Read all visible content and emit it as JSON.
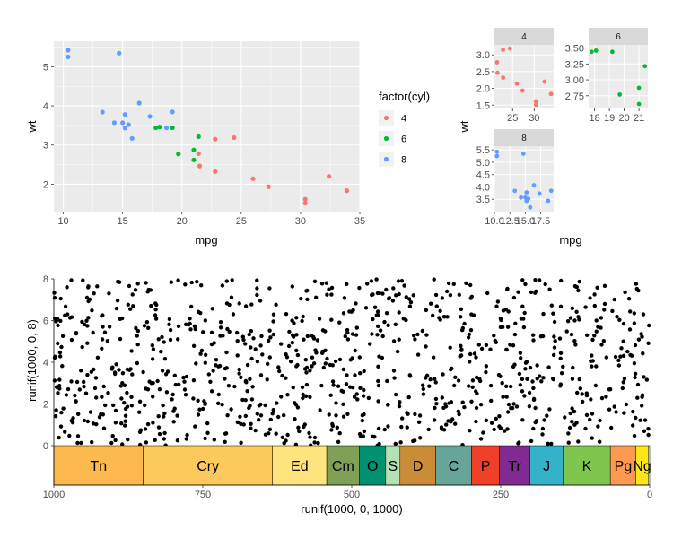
{
  "chart_data": [
    {
      "id": "main",
      "type": "scatter",
      "title": "",
      "xlabel": "mpg",
      "ylabel": "wt",
      "xlim": [
        9.2,
        35
      ],
      "ylim": [
        1.3,
        5.65
      ],
      "xticks": [
        10,
        15,
        20,
        25,
        30,
        35
      ],
      "yticks": [
        2,
        3,
        4,
        5
      ],
      "legend": {
        "title": "factor(cyl)",
        "position": "right",
        "entries": [
          {
            "label": "4",
            "color": "#F8766D"
          },
          {
            "label": "6",
            "color": "#00BA38"
          },
          {
            "label": "8",
            "color": "#619CFF"
          }
        ]
      },
      "series": [
        {
          "name": "4",
          "color": "#F8766D",
          "points": [
            [
              22.8,
              2.32
            ],
            [
              24.4,
              3.19
            ],
            [
              22.8,
              3.15
            ],
            [
              32.4,
              2.2
            ],
            [
              30.4,
              1.615
            ],
            [
              33.9,
              1.835
            ],
            [
              21.5,
              2.465
            ],
            [
              27.3,
              1.935
            ],
            [
              26.0,
              2.14
            ],
            [
              30.4,
              1.513
            ],
            [
              21.4,
              2.78
            ]
          ]
        },
        {
          "name": "6",
          "color": "#00BA38",
          "points": [
            [
              21.0,
              2.62
            ],
            [
              21.0,
              2.875
            ],
            [
              21.4,
              3.215
            ],
            [
              18.1,
              3.46
            ],
            [
              19.2,
              3.44
            ],
            [
              17.8,
              3.44
            ],
            [
              19.7,
              2.77
            ]
          ]
        },
        {
          "name": "8",
          "color": "#619CFF",
          "points": [
            [
              18.7,
              3.44
            ],
            [
              14.3,
              3.57
            ],
            [
              16.4,
              4.07
            ],
            [
              17.3,
              3.73
            ],
            [
              15.2,
              3.78
            ],
            [
              10.4,
              5.25
            ],
            [
              10.4,
              5.424
            ],
            [
              14.7,
              5.345
            ],
            [
              15.5,
              3.52
            ],
            [
              15.2,
              3.435
            ],
            [
              13.3,
              3.84
            ],
            [
              19.2,
              3.845
            ],
            [
              15.8,
              3.17
            ],
            [
              15.0,
              3.57
            ]
          ]
        }
      ]
    },
    {
      "id": "facets",
      "type": "scatter",
      "xlabel": "mpg",
      "ylabel": "wt",
      "panels": [
        {
          "strip": "4",
          "color": "#F8766D",
          "xlim": [
            20.8,
            34.5
          ],
          "ylim": [
            1.4,
            3.3
          ],
          "xticks": [
            25,
            30
          ],
          "xtick_labels": [
            "25",
            "30"
          ],
          "yticks": [
            1.5,
            2.0,
            2.5,
            3.0
          ],
          "ytick_labels": [
            "1.5",
            "2.0",
            "2.5",
            "3.0"
          ],
          "points": [
            [
              22.8,
              2.32
            ],
            [
              24.4,
              3.19
            ],
            [
              22.8,
              3.15
            ],
            [
              32.4,
              2.2
            ],
            [
              30.4,
              1.615
            ],
            [
              33.9,
              1.835
            ],
            [
              21.5,
              2.465
            ],
            [
              27.3,
              1.935
            ],
            [
              26.0,
              2.14
            ],
            [
              30.4,
              1.513
            ],
            [
              21.4,
              2.78
            ]
          ]
        },
        {
          "strip": "6",
          "color": "#00BA38",
          "xlim": [
            17.6,
            21.6
          ],
          "ylim": [
            2.55,
            3.55
          ],
          "xticks": [
            18,
            19,
            20,
            21
          ],
          "xtick_labels": [
            "18",
            "19",
            "20",
            "21"
          ],
          "yticks": [
            2.75,
            3.0,
            3.25,
            3.5
          ],
          "ytick_labels": [
            "2.75",
            "3.00",
            "3.25",
            "3.50"
          ],
          "points": [
            [
              21.0,
              2.62
            ],
            [
              21.0,
              2.875
            ],
            [
              21.4,
              3.215
            ],
            [
              18.1,
              3.46
            ],
            [
              19.2,
              3.44
            ],
            [
              17.8,
              3.44
            ],
            [
              19.7,
              2.77
            ]
          ]
        },
        {
          "strip": "8",
          "color": "#619CFF",
          "xlim": [
            10.0,
            19.6
          ],
          "ylim": [
            3.0,
            5.65
          ],
          "xticks": [
            10.0,
            12.5,
            15.0,
            17.5
          ],
          "xtick_labels": [
            "10.0",
            "12.5",
            "15.0",
            "17.5"
          ],
          "yticks": [
            3.5,
            4.0,
            4.5,
            5.0,
            5.5
          ],
          "ytick_labels": [
            "3.5",
            "4.0",
            "4.5",
            "5.0",
            "5.5"
          ],
          "points": [
            [
              18.7,
              3.44
            ],
            [
              14.3,
              3.57
            ],
            [
              16.4,
              4.07
            ],
            [
              17.3,
              3.73
            ],
            [
              15.2,
              3.78
            ],
            [
              10.4,
              5.25
            ],
            [
              10.4,
              5.424
            ],
            [
              14.7,
              5.345
            ],
            [
              15.5,
              3.52
            ],
            [
              15.2,
              3.435
            ],
            [
              13.3,
              3.84
            ],
            [
              19.2,
              3.845
            ],
            [
              15.8,
              3.17
            ],
            [
              15.0,
              3.57
            ]
          ]
        }
      ]
    },
    {
      "id": "random",
      "type": "scatter",
      "xlabel": "runif(1000, 0, 1000)",
      "ylabel": "runif(1000, 0, 8)",
      "x_reversed": true,
      "xlim": [
        1000,
        0
      ],
      "ylim": [
        0,
        8
      ],
      "xticks": [
        1000,
        750,
        500,
        250,
        0
      ],
      "yticks": [
        0,
        2,
        4,
        6,
        8
      ],
      "n_points": 1000,
      "point_color": "#000000",
      "bands": [
        {
          "label": "Tn",
          "from": 1000,
          "to": 850,
          "color": "#FCB94D"
        },
        {
          "label": "Cry",
          "from": 850,
          "to": 633,
          "color": "#FEC95C"
        },
        {
          "label": "Ed",
          "from": 633,
          "to": 542,
          "color": "#FDE47D"
        },
        {
          "label": "Cm",
          "from": 542,
          "to": 487,
          "color": "#7FA056"
        },
        {
          "label": "O",
          "from": 487,
          "to": 443,
          "color": "#009270"
        },
        {
          "label": "S",
          "from": 443,
          "to": 419,
          "color": "#B3E1B6"
        },
        {
          "label": "D",
          "from": 419,
          "to": 359,
          "color": "#CB8C37"
        },
        {
          "label": "C",
          "from": 359,
          "to": 299,
          "color": "#67A599"
        },
        {
          "label": "P",
          "from": 299,
          "to": 252,
          "color": "#F04028"
        },
        {
          "label": "Tr",
          "from": 252,
          "to": 201,
          "color": "#812B92"
        },
        {
          "label": "J",
          "from": 201,
          "to": 145,
          "color": "#34B2C9"
        },
        {
          "label": "K",
          "from": 145,
          "to": 66,
          "color": "#7FC64E"
        },
        {
          "label": "Pg",
          "from": 66,
          "to": 23,
          "color": "#FD9A52"
        },
        {
          "label": "Ng",
          "from": 23,
          "to": 2.6,
          "color": "#FFE619"
        },
        {
          "label": "",
          "from": 2.6,
          "to": 0,
          "color": "#F9F97F"
        }
      ]
    }
  ]
}
